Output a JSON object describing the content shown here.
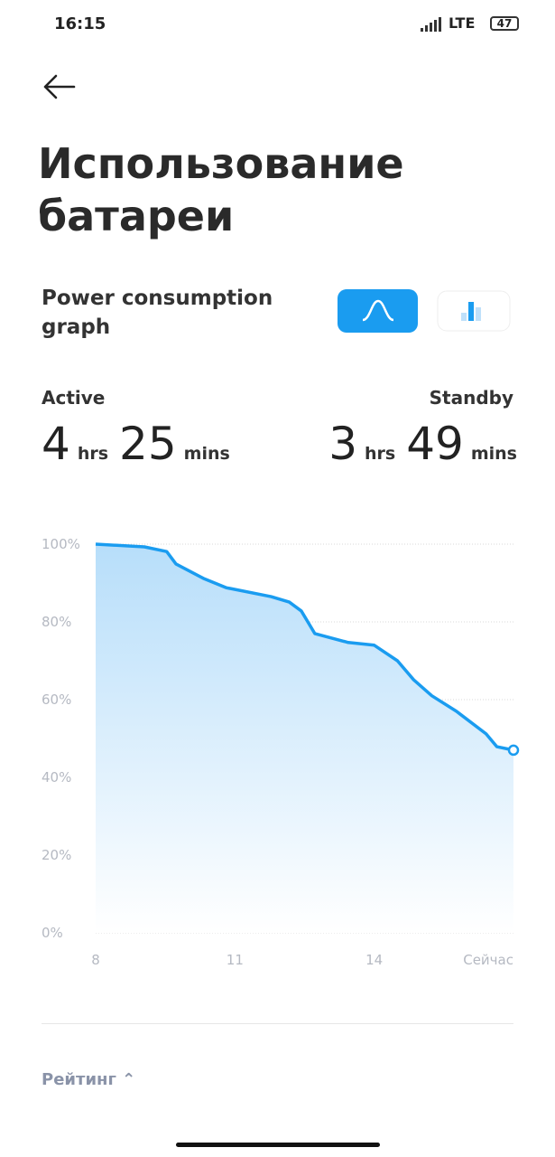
{
  "status_bar": {
    "time": "16:15",
    "network": "LTE",
    "battery": "47"
  },
  "header": {
    "title": "Использование батареи"
  },
  "section": {
    "title": "Power consumption graph"
  },
  "summary": {
    "active": {
      "label": "Active",
      "hours": 4,
      "hours_unit": "hrs",
      "minutes": 25,
      "minutes_unit": "mins"
    },
    "standby": {
      "label": "Standby",
      "hours": 3,
      "hours_unit": "hrs",
      "minutes": 49,
      "minutes_unit": "mins"
    }
  },
  "chart_data": {
    "type": "area",
    "color": "#1a9cf0",
    "x": [
      8,
      9.05,
      9.53,
      9.73,
      10.32,
      10.81,
      11.78,
      12.17,
      12.43,
      12.72,
      13.44,
      14,
      14.5,
      14.85,
      15.24,
      15.77,
      16.41,
      16.64,
      17
    ],
    "values": [
      100,
      99.3,
      98.1,
      94.9,
      91.2,
      88.8,
      86.5,
      85.1,
      82.8,
      77,
      74.7,
      74,
      70,
      65.1,
      61,
      57,
      51.2,
      47.9,
      47
    ],
    "xlim": [
      8,
      17
    ],
    "ylim": [
      0,
      100
    ],
    "xticks": [
      8,
      11,
      14,
      {
        "value": 17,
        "label": "Сейчас"
      }
    ],
    "yticks": [
      {
        "value": 0,
        "label": "0%"
      },
      {
        "value": 20,
        "label": "20%"
      },
      {
        "value": 40,
        "label": "40%"
      },
      {
        "value": 60,
        "label": "60%"
      },
      {
        "value": 80,
        "label": "80%"
      },
      {
        "value": 100,
        "label": "100%"
      }
    ],
    "grid": true
  },
  "footer": {
    "sort_label": "Рейтинг"
  }
}
